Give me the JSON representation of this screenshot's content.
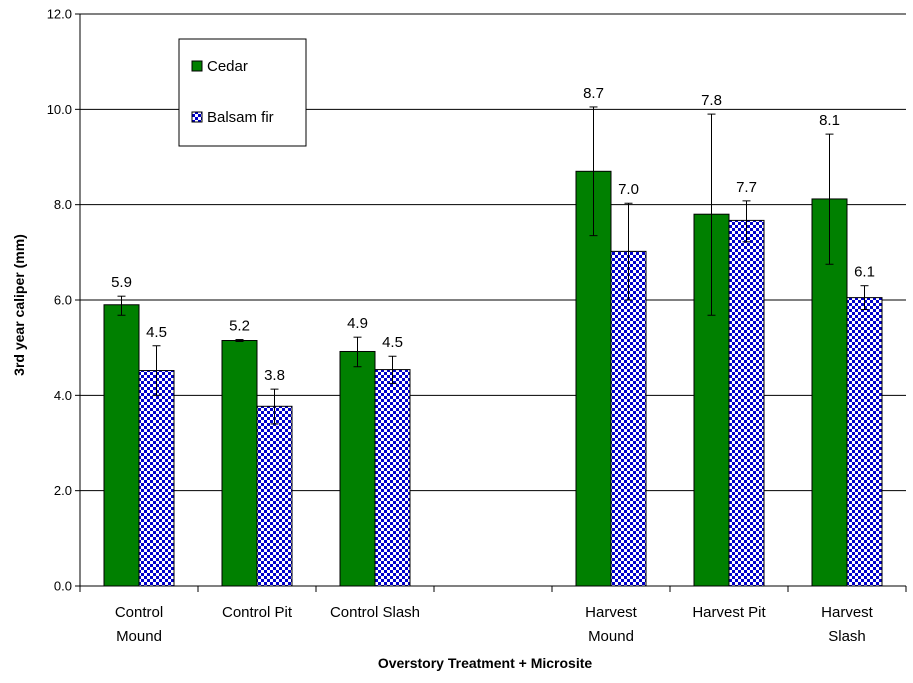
{
  "chart_data": {
    "type": "bar",
    "title": "",
    "xlabel": "Overstory Treatment + Microsite",
    "ylabel": "3rd year caliper (mm)",
    "ylim": [
      0,
      12
    ],
    "yticks": [
      "0.0",
      "2.0",
      "4.0",
      "6.0",
      "8.0",
      "10.0",
      "12.0"
    ],
    "grid": true,
    "legend_position": "top-left",
    "categories": [
      [
        "Control",
        "Mound"
      ],
      [
        "Control Pit"
      ],
      [
        "Control Slash"
      ],
      [],
      [
        "Harvest",
        "Mound"
      ],
      [
        "Harvest Pit"
      ],
      [
        "Harvest",
        "Slash"
      ]
    ],
    "series": [
      {
        "name": "Cedar",
        "color": "#008000",
        "pattern": "solid",
        "values": [
          5.9,
          5.15,
          4.92,
          null,
          8.7,
          7.8,
          8.12
        ],
        "labels": [
          "5.9",
          "5.2",
          "4.9",
          "",
          "8.7",
          "7.8",
          "8.1"
        ],
        "err_low": [
          5.68,
          5.13,
          4.6,
          null,
          7.35,
          5.68,
          6.75
        ],
        "err_high": [
          6.08,
          5.17,
          5.22,
          null,
          10.05,
          9.9,
          9.48
        ]
      },
      {
        "name": "Balsam fir",
        "color": "#0000cc",
        "pattern": "checker",
        "values": [
          4.52,
          3.77,
          4.54,
          null,
          7.02,
          7.67,
          6.05
        ],
        "labels": [
          "4.5",
          "3.8",
          "4.5",
          "",
          "7.0",
          "7.7",
          "6.1"
        ],
        "err_low": [
          4.0,
          3.4,
          4.25,
          null,
          6.0,
          7.22,
          5.8
        ],
        "err_high": [
          5.04,
          4.13,
          4.82,
          null,
          8.03,
          8.08,
          6.3
        ]
      }
    ]
  }
}
